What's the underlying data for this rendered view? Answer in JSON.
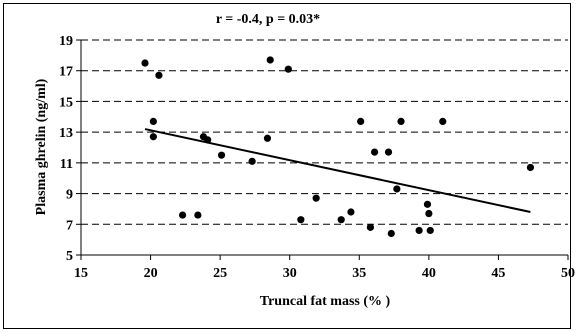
{
  "chart_data": {
    "type": "scatter",
    "title": "r = -0.4, p = 0.03*",
    "xlabel": "Truncal fat mass (% )",
    "ylabel": "Plasma ghrelin (ng/ml)",
    "xlim": [
      15,
      50
    ],
    "ylim": [
      5,
      19
    ],
    "xticks": [
      "15",
      "20",
      "25",
      "30",
      "35",
      "40",
      "45",
      "50"
    ],
    "yticks": [
      "5",
      "7",
      "9",
      "11",
      "13",
      "15",
      "17",
      "19"
    ],
    "grid": "horizontal dashed",
    "colors": {
      "points": "#000000",
      "trendline": "#000000",
      "background": "#ffffff"
    },
    "points": [
      {
        "x": 19.6,
        "y": 17.5
      },
      {
        "x": 20.2,
        "y": 13.7
      },
      {
        "x": 20.2,
        "y": 12.7
      },
      {
        "x": 20.6,
        "y": 16.7
      },
      {
        "x": 22.3,
        "y": 7.6
      },
      {
        "x": 23.4,
        "y": 7.6
      },
      {
        "x": 23.8,
        "y": 12.7
      },
      {
        "x": 24.1,
        "y": 12.5
      },
      {
        "x": 25.1,
        "y": 11.5
      },
      {
        "x": 27.3,
        "y": 11.1
      },
      {
        "x": 28.4,
        "y": 12.6
      },
      {
        "x": 28.6,
        "y": 17.7
      },
      {
        "x": 29.9,
        "y": 17.1
      },
      {
        "x": 30.8,
        "y": 7.3
      },
      {
        "x": 31.9,
        "y": 8.7
      },
      {
        "x": 33.7,
        "y": 7.3
      },
      {
        "x": 34.4,
        "y": 7.8
      },
      {
        "x": 35.1,
        "y": 13.7
      },
      {
        "x": 35.8,
        "y": 6.8
      },
      {
        "x": 36.1,
        "y": 11.7
      },
      {
        "x": 37.1,
        "y": 11.7
      },
      {
        "x": 37.3,
        "y": 6.4
      },
      {
        "x": 37.7,
        "y": 9.3
      },
      {
        "x": 38.0,
        "y": 13.7
      },
      {
        "x": 39.3,
        "y": 6.6
      },
      {
        "x": 39.9,
        "y": 8.3
      },
      {
        "x": 40.0,
        "y": 7.7
      },
      {
        "x": 40.1,
        "y": 6.6
      },
      {
        "x": 41.0,
        "y": 13.7
      },
      {
        "x": 47.3,
        "y": 10.7
      }
    ],
    "trendline": {
      "x": [
        19.6,
        47.3
      ],
      "y": [
        13.2,
        7.8
      ]
    }
  }
}
